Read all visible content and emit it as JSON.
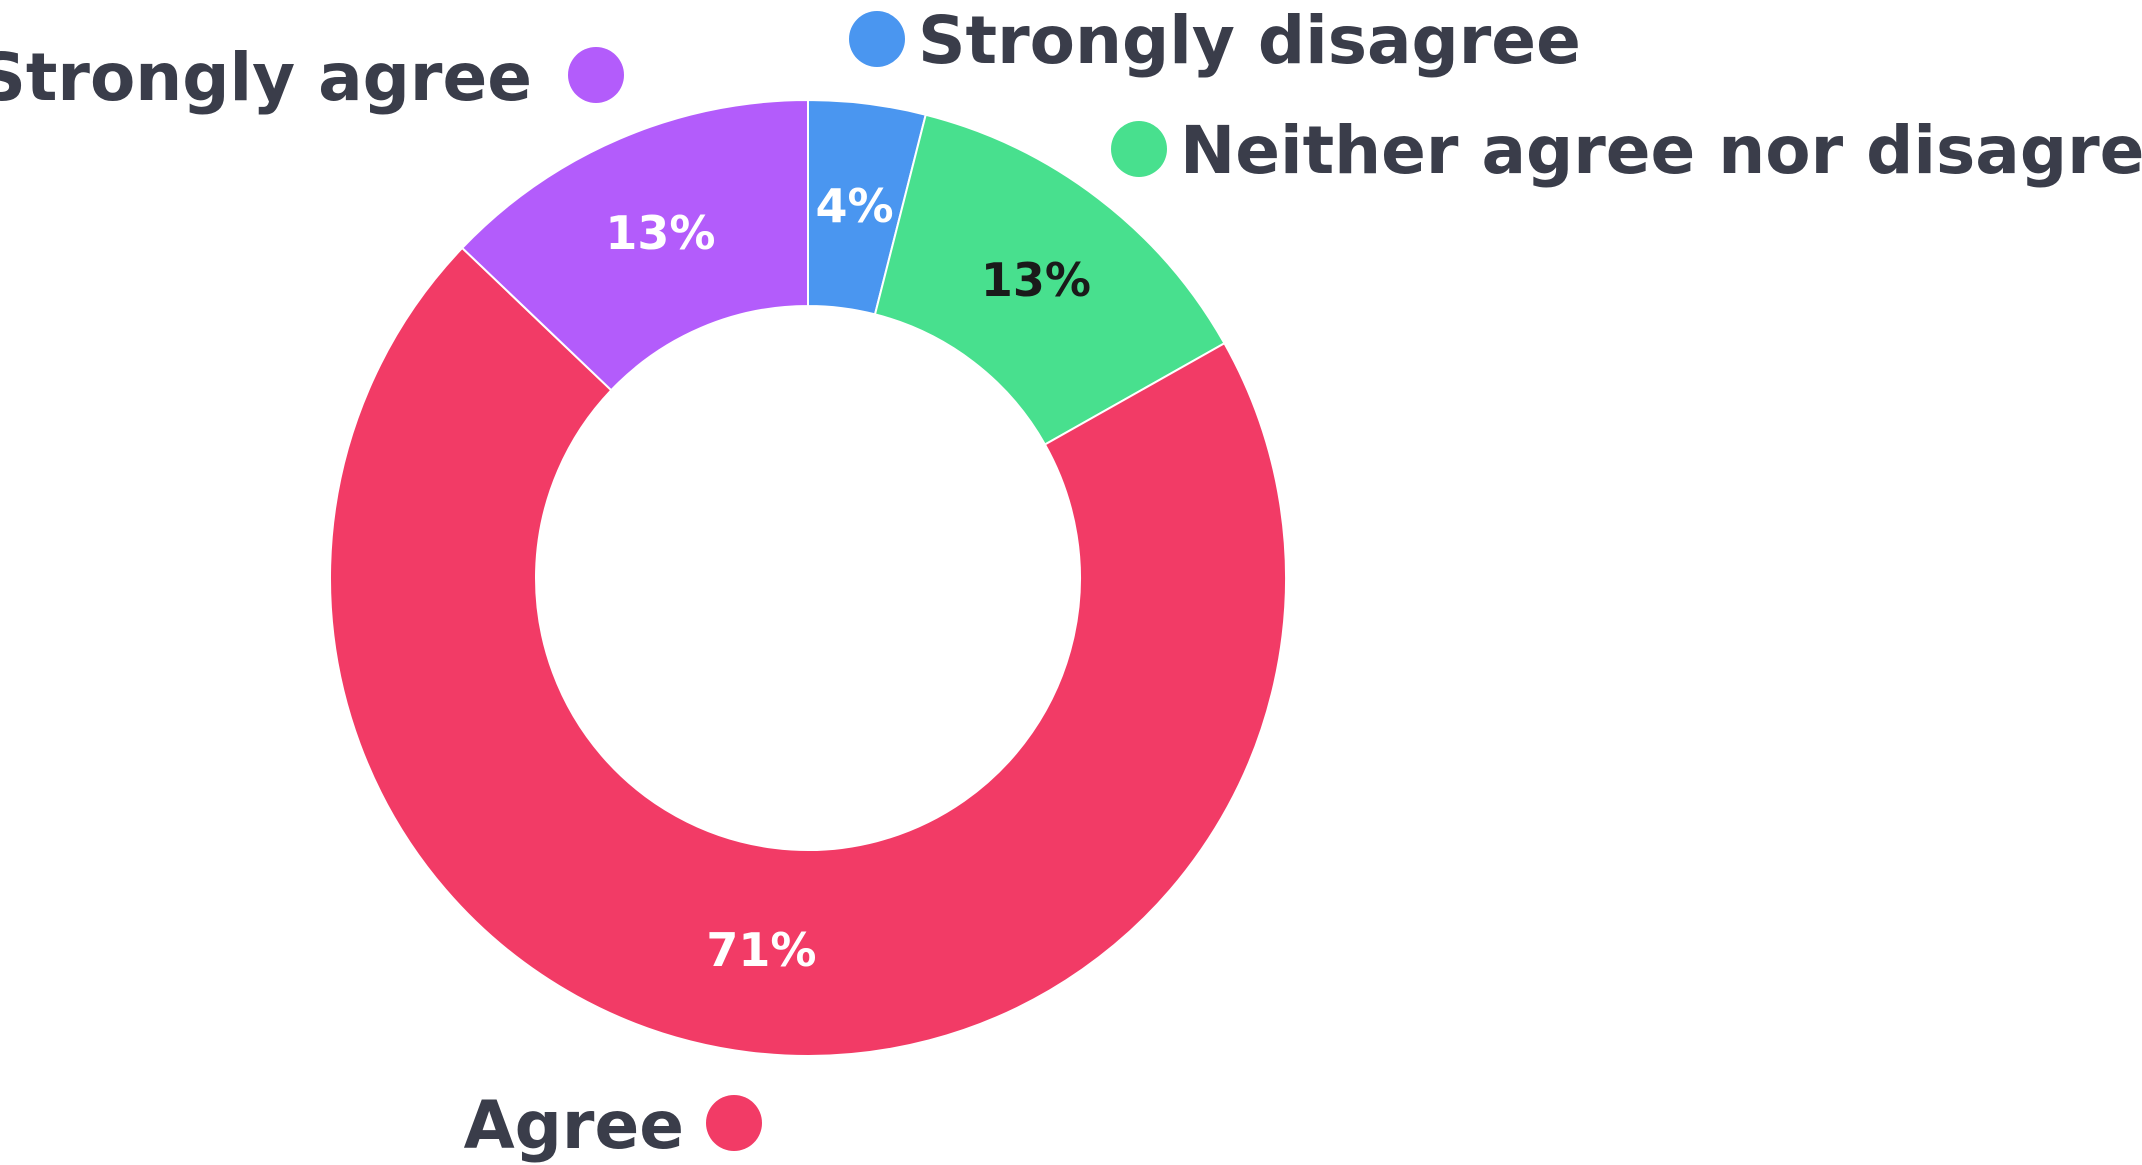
{
  "chart_data": {
    "type": "pie",
    "variant": "donut",
    "categories": [
      "Strongly disagree",
      "Neither agree nor disagree",
      "Agree",
      "Strongly agree"
    ],
    "values": [
      4,
      13,
      71,
      13
    ],
    "labels": [
      "4%",
      "13%",
      "71%",
      "13%"
    ],
    "colors": [
      "#4a96f0",
      "#48e08e",
      "#f23b66",
      "#b35cfb"
    ],
    "label_colors": [
      "#ffffff",
      "#1a1a1a",
      "#ffffff",
      "#ffffff"
    ],
    "legend": {
      "placement": "around",
      "entries": [
        {
          "name": "Strongly disagree",
          "color": "#4a96f0"
        },
        {
          "name": "Neither agree nor disagree",
          "color": "#48e08e"
        },
        {
          "name": "Agree",
          "color": "#f23b66"
        },
        {
          "name": "Strongly agree",
          "color": "#b35cfb"
        }
      ]
    }
  }
}
